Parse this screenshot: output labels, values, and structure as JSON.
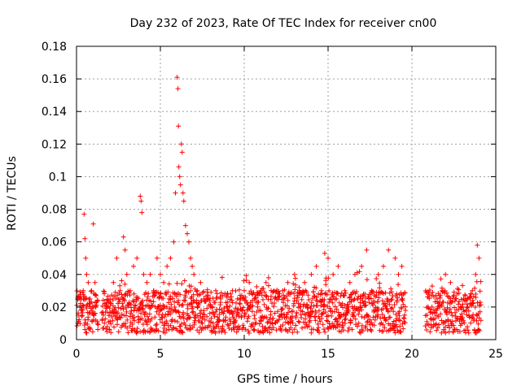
{
  "chart_data": {
    "type": "scatter",
    "title": "Day 232 of 2023, Rate Of TEC Index for receiver cn00",
    "xlabel": "GPS time / hours",
    "ylabel": "ROTI / TECUs",
    "xlim": [
      0,
      25
    ],
    "ylim": [
      0,
      0.18
    ],
    "xticks": [
      0,
      5,
      10,
      15,
      20,
      25
    ],
    "yticks": [
      0,
      0.02,
      0.04,
      0.06,
      0.08,
      0.1,
      0.12,
      0.14,
      0.16,
      0.18
    ],
    "xtick_labels": [
      "0",
      "5",
      "10",
      "15",
      "20",
      "25"
    ],
    "ytick_labels": [
      "0",
      "0.02",
      "0.04",
      "0.06",
      "0.08",
      "0.1",
      "0.12",
      "0.14",
      "0.16",
      "0.18"
    ],
    "grid": true,
    "marker": "plus",
    "color": "#ff0000",
    "series": [
      {
        "name": "ROTI",
        "x": [
          0.1,
          0.2,
          0.3,
          0.4,
          0.45,
          0.5,
          0.55,
          0.6,
          0.7,
          0.8,
          0.9,
          1.0,
          1.1,
          1.15,
          1.6,
          1.8,
          2.0,
          2.2,
          2.4,
          2.6,
          2.8,
          2.9,
          3.0,
          3.2,
          3.4,
          3.6,
          3.8,
          3.85,
          3.9,
          4.0,
          4.2,
          4.4,
          4.6,
          4.8,
          5.0,
          5.2,
          5.4,
          5.6,
          5.8,
          5.9,
          6.0,
          6.05,
          6.08,
          6.1,
          6.15,
          6.2,
          6.25,
          6.3,
          6.35,
          6.4,
          6.5,
          6.6,
          6.7,
          6.8,
          6.9,
          7.0,
          7.2,
          7.4,
          7.6,
          7.8,
          8.0,
          8.3,
          8.6,
          9.0,
          9.3,
          9.6,
          10.0,
          10.3,
          10.6,
          11.0,
          11.3,
          11.6,
          12.0,
          12.3,
          12.6,
          13.0,
          13.3,
          13.6,
          14.0,
          14.3,
          14.6,
          14.8,
          15.0,
          15.3,
          15.6,
          16.0,
          16.3,
          16.6,
          17.0,
          17.3,
          17.6,
          18.0,
          18.3,
          18.6,
          19.0,
          19.2,
          19.4,
          20.9,
          21.2,
          21.5,
          21.8,
          22.0,
          22.3,
          22.6,
          23.0,
          23.3,
          23.6,
          23.8,
          23.9,
          24.0
        ],
        "y": [
          0.015,
          0.02,
          0.018,
          0.03,
          0.077,
          0.062,
          0.05,
          0.04,
          0.035,
          0.025,
          0.03,
          0.071,
          0.035,
          0.02,
          0.015,
          0.02,
          0.025,
          0.035,
          0.05,
          0.03,
          0.063,
          0.055,
          0.04,
          0.03,
          0.045,
          0.05,
          0.088,
          0.085,
          0.078,
          0.04,
          0.035,
          0.04,
          0.03,
          0.05,
          0.04,
          0.035,
          0.045,
          0.05,
          0.06,
          0.09,
          0.161,
          0.154,
          0.131,
          0.106,
          0.1,
          0.095,
          0.12,
          0.115,
          0.09,
          0.085,
          0.07,
          0.065,
          0.06,
          0.05,
          0.045,
          0.04,
          0.03,
          0.035,
          0.025,
          0.025,
          0.02,
          0.03,
          0.025,
          0.02,
          0.03,
          0.025,
          0.03,
          0.035,
          0.025,
          0.03,
          0.035,
          0.03,
          0.028,
          0.03,
          0.035,
          0.04,
          0.03,
          0.035,
          0.04,
          0.045,
          0.03,
          0.053,
          0.05,
          0.04,
          0.045,
          0.03,
          0.035,
          0.04,
          0.045,
          0.055,
          0.03,
          0.04,
          0.045,
          0.055,
          0.05,
          0.04,
          0.045,
          0.015,
          0.02,
          0.025,
          0.03,
          0.04,
          0.035,
          0.025,
          0.02,
          0.025,
          0.03,
          0.04,
          0.058,
          0.05
        ]
      }
    ]
  }
}
